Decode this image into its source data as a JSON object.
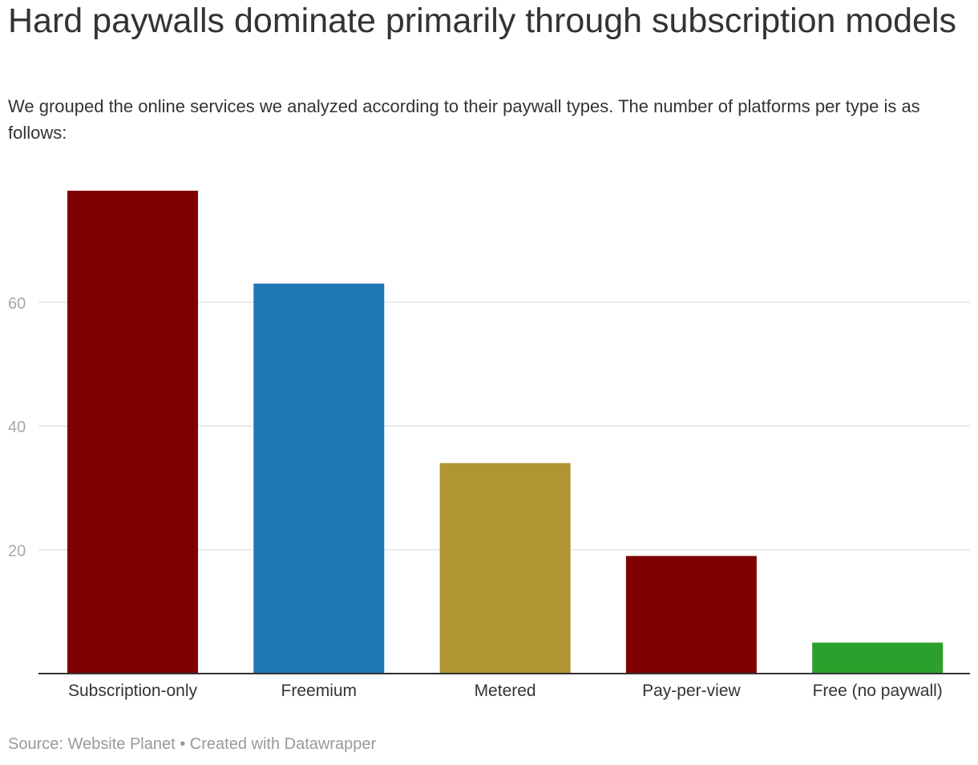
{
  "header": {
    "title": "Hard paywalls dominate primarily through subscription models",
    "subtitle": "We grouped the online services we analyzed according to their paywall types. The number of platforms per type is as follows:"
  },
  "footer": {
    "source_label": "Source:",
    "source_name": "Website Planet",
    "separator": "•",
    "credit": "Created with Datawrapper"
  },
  "chart_data": {
    "type": "bar",
    "title": "Hard paywalls dominate primarily through subscription models",
    "xlabel": "",
    "ylabel": "",
    "categories": [
      "Subscription-only",
      "Freemium",
      "Metered",
      "Pay-per-view",
      "Free (no paywall)"
    ],
    "values": [
      78,
      63,
      34,
      19,
      5
    ],
    "colors": [
      "#7f0000",
      "#1f77b4",
      "#b09530",
      "#7f0000",
      "#2ca02c"
    ],
    "ylim": [
      0,
      80
    ],
    "yticks": [
      20,
      40,
      60
    ],
    "grid": true,
    "legend": "none"
  }
}
